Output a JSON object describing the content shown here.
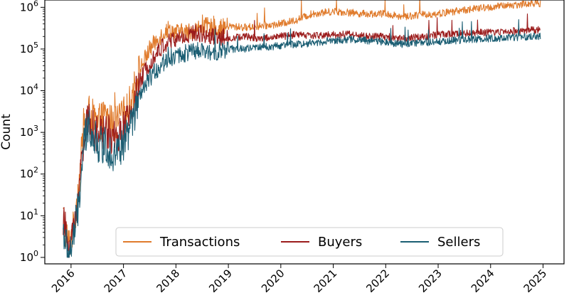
{
  "chart_data": {
    "type": "line",
    "title": "",
    "xlabel": "",
    "ylabel": "Count",
    "y_scale": "log",
    "ylim": [
      0.7,
      1500000
    ],
    "xlim": [
      2015.5,
      2025.4
    ],
    "x_ticks": [
      2016,
      2017,
      2018,
      2019,
      2020,
      2021,
      2022,
      2023,
      2024,
      2025
    ],
    "y_ticks": [
      {
        "value": 1,
        "base": "10",
        "exp": "0"
      },
      {
        "value": 10,
        "base": "10",
        "exp": "1"
      },
      {
        "value": 100,
        "base": "10",
        "exp": "2"
      },
      {
        "value": 1000,
        "base": "10",
        "exp": "3"
      },
      {
        "value": 10000,
        "base": "10",
        "exp": "4"
      },
      {
        "value": 100000,
        "base": "10",
        "exp": "5"
      },
      {
        "value": 1000000,
        "base": "10",
        "exp": "6"
      }
    ],
    "grid": false,
    "legend_position": "bottom-center",
    "series": [
      {
        "name": "Transactions",
        "color": "#e07b2c",
        "x": [
          2015.85,
          2015.95,
          2016.05,
          2016.15,
          2016.25,
          2016.35,
          2016.5,
          2016.65,
          2016.8,
          2016.95,
          2017.1,
          2017.3,
          2017.5,
          2017.7,
          2017.85,
          2018.0,
          2018.2,
          2018.4,
          2018.6,
          2018.8,
          2019.0,
          2019.3,
          2019.6,
          2020.0,
          2020.3,
          2020.6,
          2021.0,
          2021.3,
          2021.6,
          2022.0,
          2022.3,
          2022.6,
          2023.0,
          2023.3,
          2023.6,
          2024.0,
          2024.3,
          2024.6,
          2024.95
        ],
        "y": [
          10,
          2,
          5,
          60,
          1500,
          3000,
          1500,
          2500,
          1500,
          2000,
          4000,
          30000,
          100000,
          200000,
          300000,
          250000,
          250000,
          300000,
          350000,
          300000,
          350000,
          330000,
          350000,
          400000,
          500000,
          700000,
          800000,
          750000,
          700000,
          700000,
          600000,
          650000,
          700000,
          800000,
          900000,
          1000000,
          1100000,
          1200000,
          1250000
        ]
      },
      {
        "name": "Buyers",
        "color": "#9b1c1c",
        "x": [
          2015.85,
          2015.95,
          2016.05,
          2016.15,
          2016.25,
          2016.35,
          2016.5,
          2016.65,
          2016.8,
          2016.95,
          2017.1,
          2017.3,
          2017.5,
          2017.7,
          2017.85,
          2018.0,
          2018.2,
          2018.4,
          2018.6,
          2018.8,
          2019.0,
          2019.3,
          2019.6,
          2020.0,
          2020.3,
          2020.6,
          2021.0,
          2021.3,
          2021.6,
          2022.0,
          2022.3,
          2022.6,
          2023.0,
          2023.3,
          2023.6,
          2024.0,
          2024.3,
          2024.6,
          2024.95
        ],
        "y": [
          8,
          2,
          4,
          40,
          1000,
          2000,
          800,
          1200,
          700,
          900,
          2000,
          15000,
          50000,
          100000,
          150000,
          170000,
          200000,
          250000,
          220000,
          200000,
          180000,
          200000,
          180000,
          200000,
          220000,
          210000,
          220000,
          230000,
          200000,
          200000,
          180000,
          190000,
          220000,
          230000,
          240000,
          250000,
          260000,
          280000,
          290000
        ]
      },
      {
        "name": "Sellers",
        "color": "#1b5e73",
        "x": [
          2015.85,
          2015.95,
          2016.05,
          2016.15,
          2016.25,
          2016.35,
          2016.5,
          2016.65,
          2016.8,
          2016.95,
          2017.1,
          2017.3,
          2017.5,
          2017.7,
          2017.85,
          2018.0,
          2018.2,
          2018.4,
          2018.6,
          2018.8,
          2019.0,
          2019.3,
          2019.6,
          2020.0,
          2020.3,
          2020.6,
          2021.0,
          2021.3,
          2021.6,
          2022.0,
          2022.3,
          2022.6,
          2023.0,
          2023.3,
          2023.6,
          2024.0,
          2024.3,
          2024.6,
          2024.95
        ],
        "y": [
          5,
          1,
          3,
          20,
          600,
          1500,
          500,
          500,
          300,
          400,
          1000,
          6000,
          20000,
          40000,
          60000,
          70000,
          80000,
          90000,
          80000,
          90000,
          100000,
          100000,
          110000,
          120000,
          130000,
          140000,
          160000,
          170000,
          160000,
          150000,
          130000,
          140000,
          150000,
          160000,
          170000,
          180000,
          185000,
          195000,
          200000
        ]
      }
    ]
  }
}
